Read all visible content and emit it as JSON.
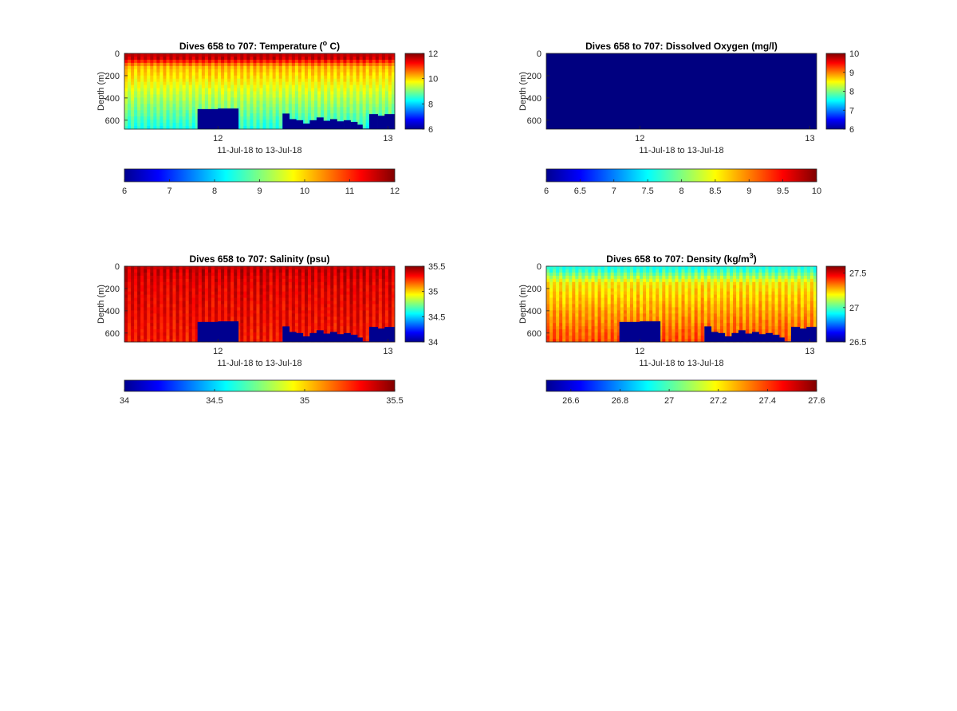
{
  "figure": {
    "panel_count": 4
  },
  "chart_data": [
    {
      "id": "temperature",
      "type": "heatmap",
      "title_prefix": "Dives 658 to 707: Temperature (",
      "title_sup": "o",
      "title_suffix": " C)",
      "xlabel": "11-Jul-18 to 13-Jul-18",
      "ylabel": "Depth (m)",
      "x_range_days": [
        11.45,
        13.04
      ],
      "x_ticks": [
        12,
        13
      ],
      "x_tick_labels": [
        "12",
        "13"
      ],
      "y_range_m": [
        0,
        680
      ],
      "y_reversed": true,
      "y_ticks": [
        0,
        200,
        400,
        600
      ],
      "y_tick_labels": [
        "0",
        "200",
        "400",
        "600"
      ],
      "clim": [
        6,
        12
      ],
      "vert_colorbar_ticks": [
        6,
        8,
        10,
        12
      ],
      "vert_colorbar_tick_labels": [
        "6",
        "8",
        "10",
        "12"
      ],
      "horiz_colorbar_ticks": [
        6,
        7,
        8,
        9,
        10,
        11,
        12
      ],
      "horiz_colorbar_tick_labels": [
        "6",
        "7",
        "8",
        "9",
        "10",
        "11",
        "12"
      ],
      "profile": {
        "surface_value": 11.6,
        "mixed_layer_depth_m": 40,
        "thermocline_value": 10.2,
        "thermocline_depth_m": 120,
        "deep_value": 8.4,
        "deep_depth_m": 680,
        "stripe_amplitude": 0.25
      }
    },
    {
      "id": "oxygen",
      "type": "heatmap",
      "title_prefix": "Dives 658 to 707: Dissolved Oxygen (mg/l)",
      "title_sup": "",
      "title_suffix": "",
      "xlabel": "11-Jul-18 to 13-Jul-18",
      "ylabel": "Depth (m)",
      "x_range_days": [
        11.45,
        13.04
      ],
      "x_ticks": [
        12,
        13
      ],
      "x_tick_labels": [
        "12",
        "13"
      ],
      "y_range_m": [
        0,
        680
      ],
      "y_reversed": true,
      "y_ticks": [
        0,
        200,
        400,
        600
      ],
      "y_tick_labels": [
        "0",
        "200",
        "400",
        "600"
      ],
      "clim": [
        6,
        10
      ],
      "vert_colorbar_ticks": [
        6,
        7,
        8,
        9,
        10
      ],
      "vert_colorbar_tick_labels": [
        "6",
        "7",
        "8",
        "9",
        "10"
      ],
      "horiz_colorbar_ticks": [
        6,
        6.5,
        7,
        7.5,
        8,
        8.5,
        9,
        9.5,
        10
      ],
      "horiz_colorbar_tick_labels": [
        "6",
        "6.5",
        "7",
        "7.5",
        "8",
        "8.5",
        "9",
        "9.5",
        "10"
      ],
      "uniform_value": 6
    },
    {
      "id": "salinity",
      "type": "heatmap",
      "title_prefix": "Dives 658 to 707: Salinity (psu)",
      "title_sup": "",
      "title_suffix": "",
      "xlabel": "11-Jul-18 to 13-Jul-18",
      "ylabel": "Depth (m)",
      "x_range_days": [
        11.45,
        13.04
      ],
      "x_ticks": [
        12,
        13
      ],
      "x_tick_labels": [
        "12",
        "13"
      ],
      "y_range_m": [
        0,
        680
      ],
      "y_reversed": true,
      "y_ticks": [
        0,
        200,
        400,
        600
      ],
      "y_tick_labels": [
        "0",
        "200",
        "400",
        "600"
      ],
      "clim": [
        34,
        35.5
      ],
      "vert_colorbar_ticks": [
        34,
        34.5,
        35,
        35.5
      ],
      "vert_colorbar_tick_labels": [
        "34",
        "34.5",
        "35",
        "35.5"
      ],
      "horiz_colorbar_ticks": [
        34,
        34.5,
        35,
        35.5
      ],
      "horiz_colorbar_tick_labels": [
        "34",
        "34.5",
        "35",
        "35.5"
      ],
      "profile": {
        "surface_value": 35.4,
        "mixed_layer_depth_m": 20,
        "thermocline_value": 35.36,
        "thermocline_depth_m": 150,
        "deep_value": 35.3,
        "deep_depth_m": 680,
        "stripe_amplitude": 0.08
      }
    },
    {
      "id": "density",
      "type": "heatmap",
      "title_prefix": "Dives 658 to 707: Density (kg/m",
      "title_sup": "3",
      "title_suffix": ")",
      "xlabel": "11-Jul-18 to 13-Jul-18",
      "ylabel": "Depth (m)",
      "x_range_days": [
        11.45,
        13.04
      ],
      "x_ticks": [
        12,
        13
      ],
      "x_tick_labels": [
        "12",
        "13"
      ],
      "y_range_m": [
        0,
        680
      ],
      "y_reversed": true,
      "y_ticks": [
        0,
        200,
        400,
        600
      ],
      "y_tick_labels": [
        "0",
        "200",
        "400",
        "600"
      ],
      "clim": [
        26.5,
        27.6
      ],
      "vert_colorbar_ticks": [
        26.5,
        27,
        27.5
      ],
      "vert_colorbar_tick_labels": [
        "26.5",
        "27",
        "27.5"
      ],
      "horiz_colorbar_ticks": [
        26.6,
        26.8,
        27,
        27.2,
        27.4,
        27.6
      ],
      "horiz_colorbar_tick_labels": [
        "26.6",
        "26.8",
        "27",
        "27.2",
        "27.4",
        "27.6"
      ],
      "profile": {
        "surface_value": 26.95,
        "mixed_layer_depth_m": 30,
        "thermocline_value": 27.2,
        "thermocline_depth_m": 150,
        "deep_value": 27.38,
        "deep_depth_m": 680,
        "stripe_amplitude": 0.06
      }
    }
  ],
  "missing_data_blocks": {
    "value_fill": "#00008f",
    "blocks": [
      {
        "x0": 11.88,
        "x1": 12.0,
        "top_m": 500
      },
      {
        "x0": 12.0,
        "x1": 12.12,
        "top_m": 495
      },
      {
        "x0": 12.38,
        "x1": 12.42,
        "top_m": 540
      },
      {
        "x0": 12.42,
        "x1": 12.46,
        "top_m": 590
      },
      {
        "x0": 12.46,
        "x1": 12.5,
        "top_m": 600
      },
      {
        "x0": 12.5,
        "x1": 12.54,
        "top_m": 630
      },
      {
        "x0": 12.54,
        "x1": 12.58,
        "top_m": 600
      },
      {
        "x0": 12.58,
        "x1": 12.62,
        "top_m": 575
      },
      {
        "x0": 12.62,
        "x1": 12.66,
        "top_m": 605
      },
      {
        "x0": 12.66,
        "x1": 12.7,
        "top_m": 590
      },
      {
        "x0": 12.7,
        "x1": 12.74,
        "top_m": 610
      },
      {
        "x0": 12.74,
        "x1": 12.78,
        "top_m": 600
      },
      {
        "x0": 12.78,
        "x1": 12.82,
        "top_m": 615
      },
      {
        "x0": 12.82,
        "x1": 12.85,
        "top_m": 640
      },
      {
        "x0": 12.85,
        "x1": 12.89,
        "top_m": 675
      },
      {
        "x0": 12.89,
        "x1": 12.94,
        "top_m": 545
      },
      {
        "x0": 12.94,
        "x1": 12.98,
        "top_m": 560
      },
      {
        "x0": 12.98,
        "x1": 13.04,
        "top_m": 545
      }
    ]
  }
}
